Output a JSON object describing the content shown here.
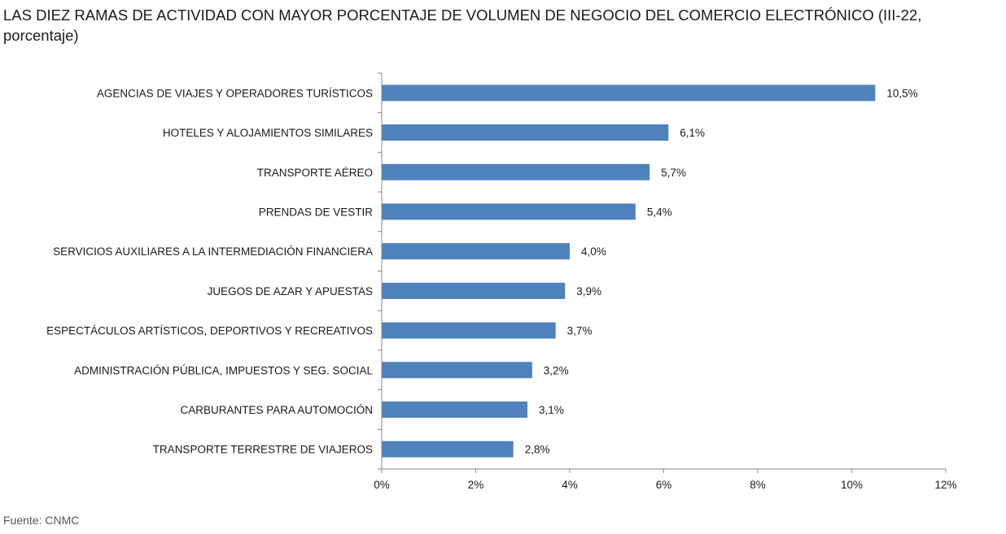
{
  "title": "LAS DIEZ RAMAS DE ACTIVIDAD CON MAYOR PORCENTAJE DE VOLUMEN DE NEGOCIO DEL COMERCIO ELECTRÓNICO (III-22, porcentaje)",
  "source": "Fuente: CNMC",
  "colors": {
    "bar": "#4f81bd",
    "axis": "#888888"
  },
  "chart_data": {
    "type": "bar",
    "orientation": "horizontal",
    "categories": [
      "AGENCIAS DE VIAJES Y OPERADORES TURÍSTICOS",
      "HOTELES  Y ALOJAMIENTOS SIMILARES",
      "TRANSPORTE AÉREO",
      "PRENDAS DE VESTIR",
      "SERVICIOS AUXILIARES A LA INTERMEDIACIÓN FINANCIERA",
      "JUEGOS DE AZAR Y APUESTAS",
      "ESPECTÁCULOS ARTÍSTICOS, DEPORTIVOS Y RECREATIVOS",
      "ADMINISTRACIÓN PÚBLICA, IMPUESTOS Y SEG. SOCIAL",
      "CARBURANTES PARA AUTOMOCIÓN",
      "TRANSPORTE TERRESTRE DE VIAJEROS"
    ],
    "values": [
      10.5,
      6.1,
      5.7,
      5.4,
      4.0,
      3.9,
      3.7,
      3.2,
      3.1,
      2.8
    ],
    "value_labels": [
      "10,5%",
      "6,1%",
      "5,7%",
      "5,4%",
      "4,0%",
      "3,9%",
      "3,7%",
      "3,2%",
      "3,1%",
      "2,8%"
    ],
    "xlim": [
      0,
      12
    ],
    "xticks": [
      0,
      2,
      4,
      6,
      8,
      10,
      12
    ],
    "xtick_labels": [
      "0%",
      "2%",
      "4%",
      "6%",
      "8%",
      "10%",
      "12%"
    ],
    "grid": false,
    "legend": "none"
  }
}
